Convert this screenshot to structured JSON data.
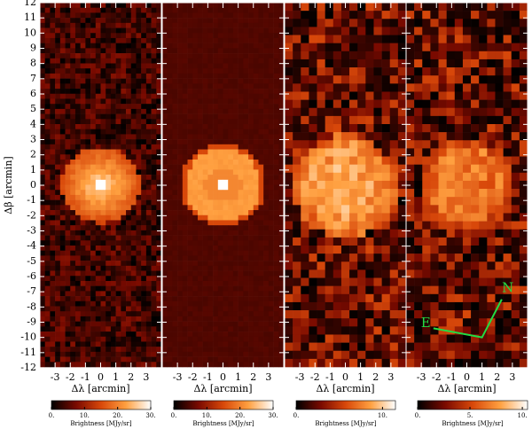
{
  "chart_data": [
    {
      "type": "heatmap",
      "ylabel": "Δβ [arcmin]",
      "ylim": [
        -12,
        12
      ],
      "yticks": [
        -12,
        -11,
        -10,
        -9,
        -8,
        -7,
        -6,
        -5,
        -4,
        -3,
        -2,
        -1,
        0,
        1,
        2,
        3,
        4,
        5,
        6,
        7,
        8,
        9,
        10,
        11,
        12
      ],
      "xlabel": "Δλ [arcmin]",
      "xlim": [
        -4,
        4
      ],
      "xticks": [
        -3,
        -2,
        -1,
        0,
        1,
        2,
        3
      ],
      "colormap": [
        "#000000",
        "#7a0a00",
        "#d8480a",
        "#ffa040",
        "#ffffff"
      ],
      "colorbar": {
        "label": "Brightness [MJy/sr]",
        "lim": [
          0,
          30
        ],
        "ticks": [
          {
            "value": 0,
            "label": "0."
          },
          {
            "value": 10,
            "label": "10."
          },
          {
            "value": 20,
            "label": "20."
          },
          {
            "value": 30,
            "label": "30."
          }
        ]
      }
    },
    {
      "type": "heatmap",
      "xlabel": "Δλ [arcmin]",
      "xlim": [
        -4,
        4
      ],
      "xticks": [
        -3,
        -2,
        -1,
        0,
        1,
        2,
        3
      ],
      "colorbar": {
        "label": "Brightness [MJy/sr]",
        "lim": [
          0,
          30
        ],
        "ticks": [
          {
            "value": 0,
            "label": "0."
          },
          {
            "value": 10,
            "label": "10."
          },
          {
            "value": 20,
            "label": "20."
          },
          {
            "value": 30,
            "label": "30."
          }
        ]
      }
    },
    {
      "type": "heatmap",
      "xlabel": "Δλ [arcmin]",
      "xlim": [
        -4,
        4
      ],
      "xticks": [
        -3,
        -2,
        -1,
        0,
        1,
        2,
        3
      ],
      "colorbar": {
        "label": "Brightness [MJy/sr]",
        "lim": [
          0,
          11.5
        ],
        "ticks": [
          {
            "value": 0,
            "label": "0."
          },
          {
            "value": 10,
            "label": "10."
          }
        ]
      }
    },
    {
      "type": "heatmap",
      "xlabel": "Δλ [arcmin]",
      "xlim": [
        -4,
        4
      ],
      "xticks": [
        -3,
        -2,
        -1,
        0,
        1,
        2,
        3
      ],
      "annotations": [
        "N",
        "E"
      ],
      "colorbar": {
        "label": "Brightness [MJy/sr]",
        "lim": [
          0,
          10.5
        ],
        "ticks": [
          {
            "value": 0,
            "label": "0."
          },
          {
            "value": 5,
            "label": "5."
          },
          {
            "value": 10,
            "label": "10."
          }
        ]
      }
    }
  ]
}
